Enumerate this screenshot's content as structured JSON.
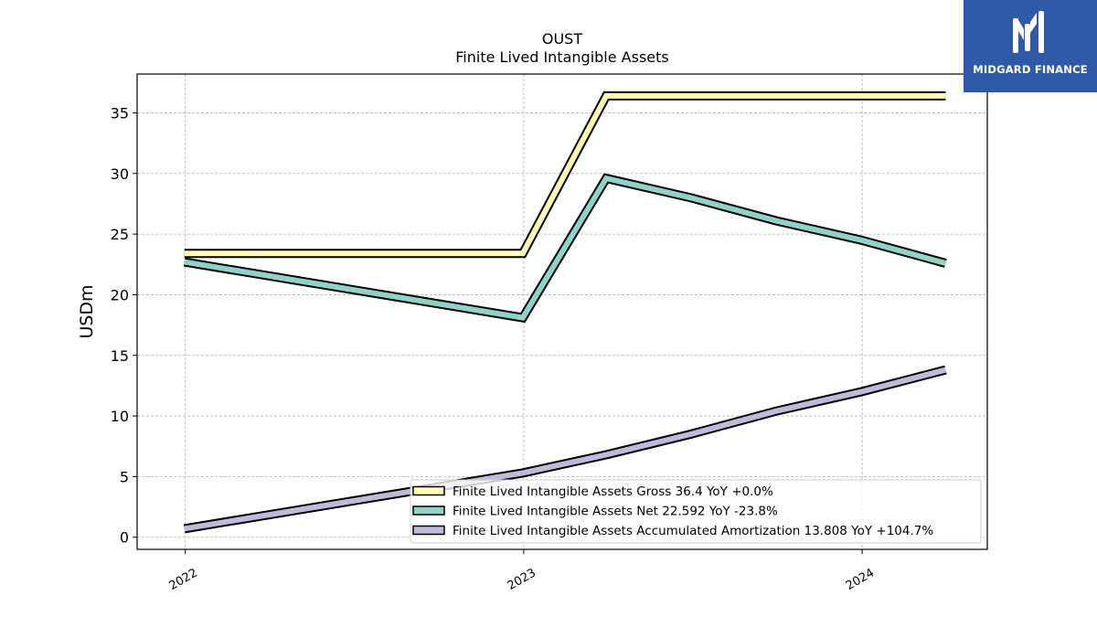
{
  "chart_data": {
    "type": "line",
    "title": "OUST",
    "subtitle": "Finite Lived Intangible Assets",
    "ylabel": "USDm",
    "xlabel": "",
    "ylim": [
      -1,
      38.2
    ],
    "xlim": [
      "2021-11-10",
      "2024-05-15"
    ],
    "yticks": [
      0,
      5,
      10,
      15,
      20,
      25,
      30,
      35
    ],
    "xticks": [
      "2022",
      "2023",
      "2024"
    ],
    "xtick_dates": [
      "2022-01-01",
      "2023-01-01",
      "2024-01-01"
    ],
    "grid": true,
    "legend_position": "lower-right",
    "x": [
      "2021-12-31",
      "2022-12-31",
      "2023-03-31",
      "2023-06-30",
      "2023-09-30",
      "2023-12-31",
      "2024-03-31"
    ],
    "series": [
      {
        "name": "Finite Lived Intangible Assets Gross  36.4 YoY +0.0%",
        "color": "#ffffb3",
        "values": [
          23.4,
          23.4,
          36.4,
          36.4,
          36.4,
          36.4,
          36.4
        ]
      },
      {
        "name": "Finite Lived Intangible Assets Net  22.592 YoY -23.8%",
        "color": "#8dd3c7",
        "values": [
          22.7,
          18.1,
          29.6,
          28.0,
          26.1,
          24.5,
          22.592
        ]
      },
      {
        "name": "Finite Lived Intangible Assets Accumulated Amortization  13.808 YoY +104.7%",
        "color": "#bebada",
        "values": [
          0.7,
          5.3,
          6.8,
          8.5,
          10.4,
          12.0,
          13.808
        ]
      }
    ]
  },
  "logo": {
    "text": "MIDGARD FINANCE"
  }
}
